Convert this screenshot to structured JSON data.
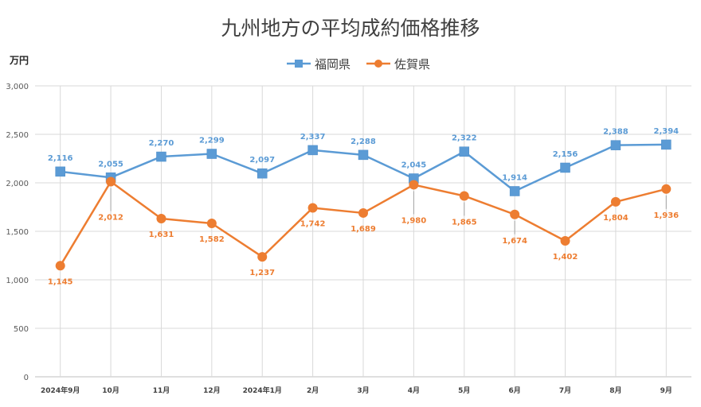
{
  "chart_data": {
    "type": "line",
    "title": "九州地方の平均成約価格推移",
    "ylabel": "万円",
    "xlabel": "",
    "ylim": [
      0,
      3000
    ],
    "yticks": [
      0,
      500,
      1000,
      1500,
      2000,
      2500,
      3000
    ],
    "ytick_labels": [
      "0",
      "500",
      "1,000",
      "1,500",
      "2,000",
      "2,500",
      "3,000"
    ],
    "categories": [
      "2024年9月",
      "10月",
      "11月",
      "12月",
      "2024年1月",
      "2月",
      "3月",
      "4月",
      "5月",
      "6月",
      "7月",
      "8月",
      "9月"
    ],
    "grid": true,
    "legend_position": "top",
    "series": [
      {
        "name": "福岡県",
        "color": "#5B9BD5",
        "marker": "square",
        "values": [
          2116,
          2055,
          2270,
          2299,
          2097,
          2337,
          2288,
          2045,
          2322,
          1914,
          2156,
          2388,
          2394
        ],
        "labels": [
          "2,116",
          "2,055",
          "2,270",
          "2,299",
          "2,097",
          "2,337",
          "2,288",
          "2,045",
          "2,322",
          "1,914",
          "2,156",
          "2,388",
          "2,394"
        ]
      },
      {
        "name": "佐賀県",
        "color": "#ED7D31",
        "marker": "circle",
        "values": [
          1145,
          2012,
          1631,
          1582,
          1237,
          1742,
          1689,
          1980,
          1865,
          1674,
          1402,
          1804,
          1936
        ],
        "labels": [
          "1,145",
          "2,012",
          "1,631",
          "1,582",
          "1,237",
          "1,742",
          "1,689",
          "1,980",
          "1,865",
          "1,674",
          "1,402",
          "1,804",
          "1,936"
        ]
      }
    ]
  }
}
